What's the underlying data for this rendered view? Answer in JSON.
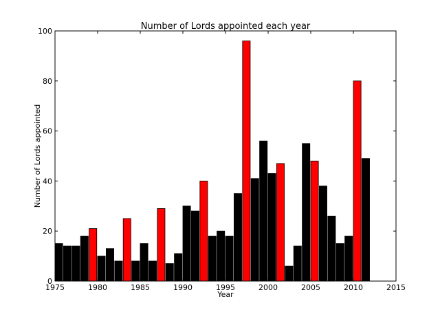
{
  "chart_data": {
    "type": "bar",
    "title": "Number of Lords appointed each year",
    "xlabel": "Year",
    "ylabel": "Number of Lords appointed",
    "xlim": [
      1975,
      2015
    ],
    "ylim": [
      0,
      100
    ],
    "xticks": [
      1975,
      1980,
      1985,
      1990,
      1995,
      2000,
      2005,
      2010,
      2015
    ],
    "yticks": [
      0,
      20,
      40,
      60,
      80,
      100
    ],
    "grid": false,
    "bars": [
      {
        "year": 1975,
        "value": 15,
        "color": "#000000"
      },
      {
        "year": 1976,
        "value": 14,
        "color": "#000000"
      },
      {
        "year": 1977,
        "value": 14,
        "color": "#000000"
      },
      {
        "year": 1978,
        "value": 18,
        "color": "#000000"
      },
      {
        "year": 1979,
        "value": 21,
        "color": "#ff0000"
      },
      {
        "year": 1980,
        "value": 10,
        "color": "#000000"
      },
      {
        "year": 1981,
        "value": 13,
        "color": "#000000"
      },
      {
        "year": 1982,
        "value": 8,
        "color": "#000000"
      },
      {
        "year": 1983,
        "value": 25,
        "color": "#ff0000"
      },
      {
        "year": 1984,
        "value": 8,
        "color": "#000000"
      },
      {
        "year": 1985,
        "value": 15,
        "color": "#000000"
      },
      {
        "year": 1986,
        "value": 8,
        "color": "#000000"
      },
      {
        "year": 1987,
        "value": 29,
        "color": "#ff0000"
      },
      {
        "year": 1988,
        "value": 7,
        "color": "#000000"
      },
      {
        "year": 1989,
        "value": 11,
        "color": "#000000"
      },
      {
        "year": 1990,
        "value": 30,
        "color": "#000000"
      },
      {
        "year": 1991,
        "value": 28,
        "color": "#000000"
      },
      {
        "year": 1992,
        "value": 40,
        "color": "#ff0000"
      },
      {
        "year": 1993,
        "value": 18,
        "color": "#000000"
      },
      {
        "year": 1994,
        "value": 20,
        "color": "#000000"
      },
      {
        "year": 1995,
        "value": 18,
        "color": "#000000"
      },
      {
        "year": 1996,
        "value": 35,
        "color": "#000000"
      },
      {
        "year": 1997,
        "value": 96,
        "color": "#ff0000"
      },
      {
        "year": 1998,
        "value": 41,
        "color": "#000000"
      },
      {
        "year": 1999,
        "value": 56,
        "color": "#000000"
      },
      {
        "year": 2000,
        "value": 43,
        "color": "#000000"
      },
      {
        "year": 2001,
        "value": 47,
        "color": "#ff0000"
      },
      {
        "year": 2002,
        "value": 6,
        "color": "#000000"
      },
      {
        "year": 2003,
        "value": 14,
        "color": "#000000"
      },
      {
        "year": 2004,
        "value": 55,
        "color": "#000000"
      },
      {
        "year": 2005,
        "value": 48,
        "color": "#ff0000"
      },
      {
        "year": 2006,
        "value": 38,
        "color": "#000000"
      },
      {
        "year": 2007,
        "value": 26,
        "color": "#000000"
      },
      {
        "year": 2008,
        "value": 15,
        "color": "#000000"
      },
      {
        "year": 2009,
        "value": 18,
        "color": "#000000"
      },
      {
        "year": 2010,
        "value": 80,
        "color": "#ff0000"
      },
      {
        "year": 2011,
        "value": 49,
        "color": "#000000"
      }
    ]
  }
}
